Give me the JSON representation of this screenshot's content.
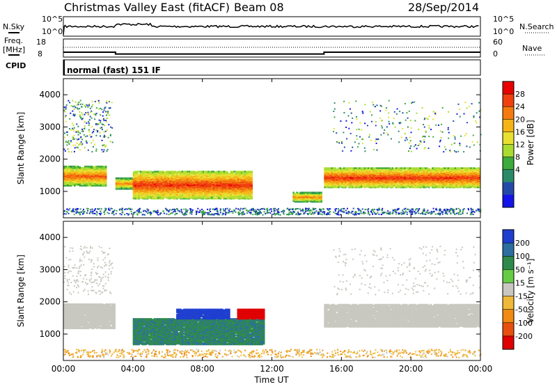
{
  "header": {
    "station": "Christmas Valley East (fitACF)",
    "beam": "Beam 08",
    "date": "28/Sep/2014"
  },
  "summary": {
    "nsky_label": "N.Sky",
    "nsearch_label": "N.Search",
    "freq_label_1": "Freq.",
    "freq_label_2": "[MHz]",
    "nave_label": "Nave",
    "cpid_label": "CPID",
    "cpid_value": "normal (fast) 151 IF",
    "noise_ticks_left": [
      "10^5",
      "10^0"
    ],
    "noise_ticks_right": [
      "10^5",
      "10^0"
    ],
    "freq_ticks": [
      "18",
      "8"
    ],
    "nave_ticks": [
      "60",
      "0"
    ],
    "freq_step_mhz": [
      {
        "t": 0.0,
        "v": 11.5
      },
      {
        "t": 3.0,
        "v": 10.0
      },
      {
        "t": 15.0,
        "v": 11.5
      },
      {
        "t": 24.0,
        "v": 11.5
      }
    ]
  },
  "x_ticks": [
    "00:00",
    "04:00",
    "08:00",
    "12:00",
    "16:00",
    "20:00",
    "00:00"
  ],
  "x_label": "Time UT",
  "y_label": "Slant Range [km]",
  "y_ticks": [
    "1000",
    "2000",
    "3000",
    "4000"
  ],
  "power_colorbar": {
    "label": "Power [dB]",
    "ticks": [
      "28",
      "24",
      "20",
      "16",
      "12",
      "8",
      "4"
    ],
    "colors": [
      "#e80000",
      "#f04010",
      "#f47a10",
      "#f4b418",
      "#e8e030",
      "#a8dc30",
      "#3caa3c",
      "#2a8a68",
      "#244aa8",
      "#1414e8"
    ]
  },
  "velocity_colorbar": {
    "label": "Velocity [m s⁻¹]",
    "ticks": [
      "200",
      "100",
      "50",
      "15",
      "-15",
      "-50",
      "-100",
      "-200"
    ],
    "colors": [
      "#1e3ed0",
      "#2c6ea0",
      "#2e8a4c",
      "#66cc44",
      "#c8c8c0",
      "#f0b838",
      "#f08a10",
      "#e85010",
      "#e00000"
    ]
  },
  "chart_data": {
    "type": "heatmap",
    "x": {
      "label": "Time UT",
      "range_hours": [
        0,
        24
      ]
    },
    "y": {
      "label": "Slant Range [km]",
      "range_km": [
        180,
        4500
      ]
    },
    "power_echo_regions": [
      {
        "t0": 0.0,
        "t1": 2.5,
        "r0": 1150,
        "r1": 1750,
        "db": 26
      },
      {
        "t0": 3.0,
        "t1": 4.0,
        "r0": 1050,
        "r1": 1400,
        "db": 24
      },
      {
        "t0": 4.0,
        "t1": 10.8,
        "r0": 750,
        "r1": 1600,
        "db": 28
      },
      {
        "t0": 13.2,
        "t1": 14.8,
        "r0": 650,
        "r1": 950,
        "db": 24
      },
      {
        "t0": 15.0,
        "t1": 24.0,
        "r0": 1100,
        "r1": 1700,
        "db": 28
      }
    ],
    "velocity_regions": [
      {
        "t0": 0.0,
        "t1": 3.0,
        "r0": 1150,
        "r1": 1900,
        "v": 0
      },
      {
        "t0": 4.0,
        "t1": 11.5,
        "r0": 650,
        "r1": 1450,
        "v": 70
      },
      {
        "t0": 6.5,
        "t1": 9.5,
        "r0": 1450,
        "r1": 1750,
        "v": 220
      },
      {
        "t0": 10.0,
        "t1": 11.5,
        "r0": 1450,
        "r1": 1750,
        "v": -220
      },
      {
        "t0": 15.0,
        "t1": 24.0,
        "r0": 1200,
        "r1": 1900,
        "v": 0
      }
    ]
  }
}
